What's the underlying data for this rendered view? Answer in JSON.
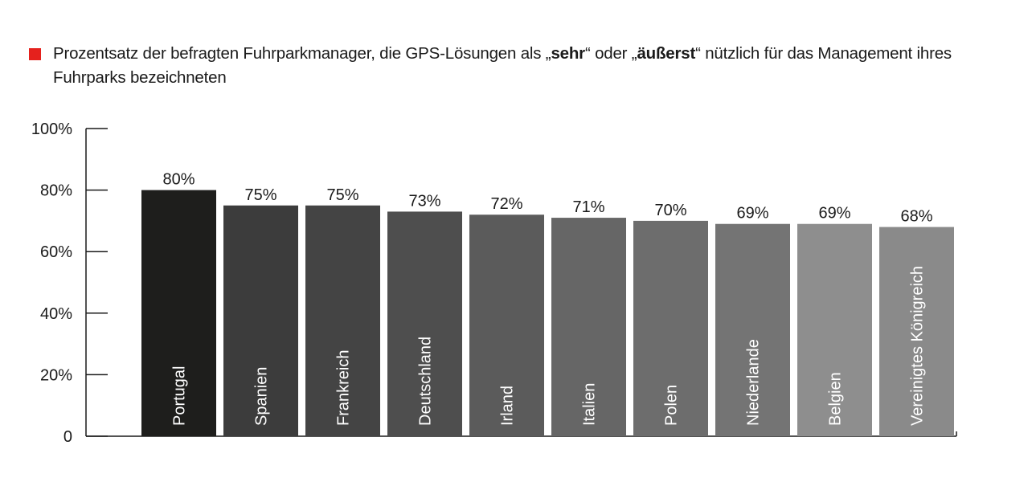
{
  "legend": {
    "color": "#e5211d",
    "text_before": "Prozentsatz der befragten Fuhrparkmanager, die GPS-Lösungen als „",
    "bold1": "sehr",
    "text_mid": "“ oder „",
    "bold2": "äußerst",
    "text_after": "“ nützlich für das Management ihres Fuhrparks bezeichneten"
  },
  "chart_data": {
    "type": "bar",
    "title": "",
    "xlabel": "",
    "ylabel": "",
    "ylim": [
      0,
      100
    ],
    "y_ticks": [
      "0",
      "20%",
      "40%",
      "60%",
      "80%",
      "100%"
    ],
    "categories": [
      "Portugal",
      "Spanien",
      "Frankreich",
      "Deutschland",
      "Irland",
      "Italien",
      "Polen",
      "Niederlande",
      "Belgien",
      "Vereinigtes Königreich"
    ],
    "values": [
      80,
      75,
      75,
      73,
      72,
      71,
      70,
      69,
      69,
      68
    ],
    "value_labels": [
      "80%",
      "75%",
      "75%",
      "73%",
      "72%",
      "71%",
      "70%",
      "69%",
      "69%",
      "68%"
    ],
    "bar_colors": [
      "#1e1e1c",
      "#3c3c3c",
      "#444444",
      "#4e4e4e",
      "#5b5b5b",
      "#666666",
      "#6d6d6d",
      "#747474",
      "#8e8e8e",
      "#8a8a8a"
    ],
    "grid": false,
    "legend_position": "top-left"
  }
}
